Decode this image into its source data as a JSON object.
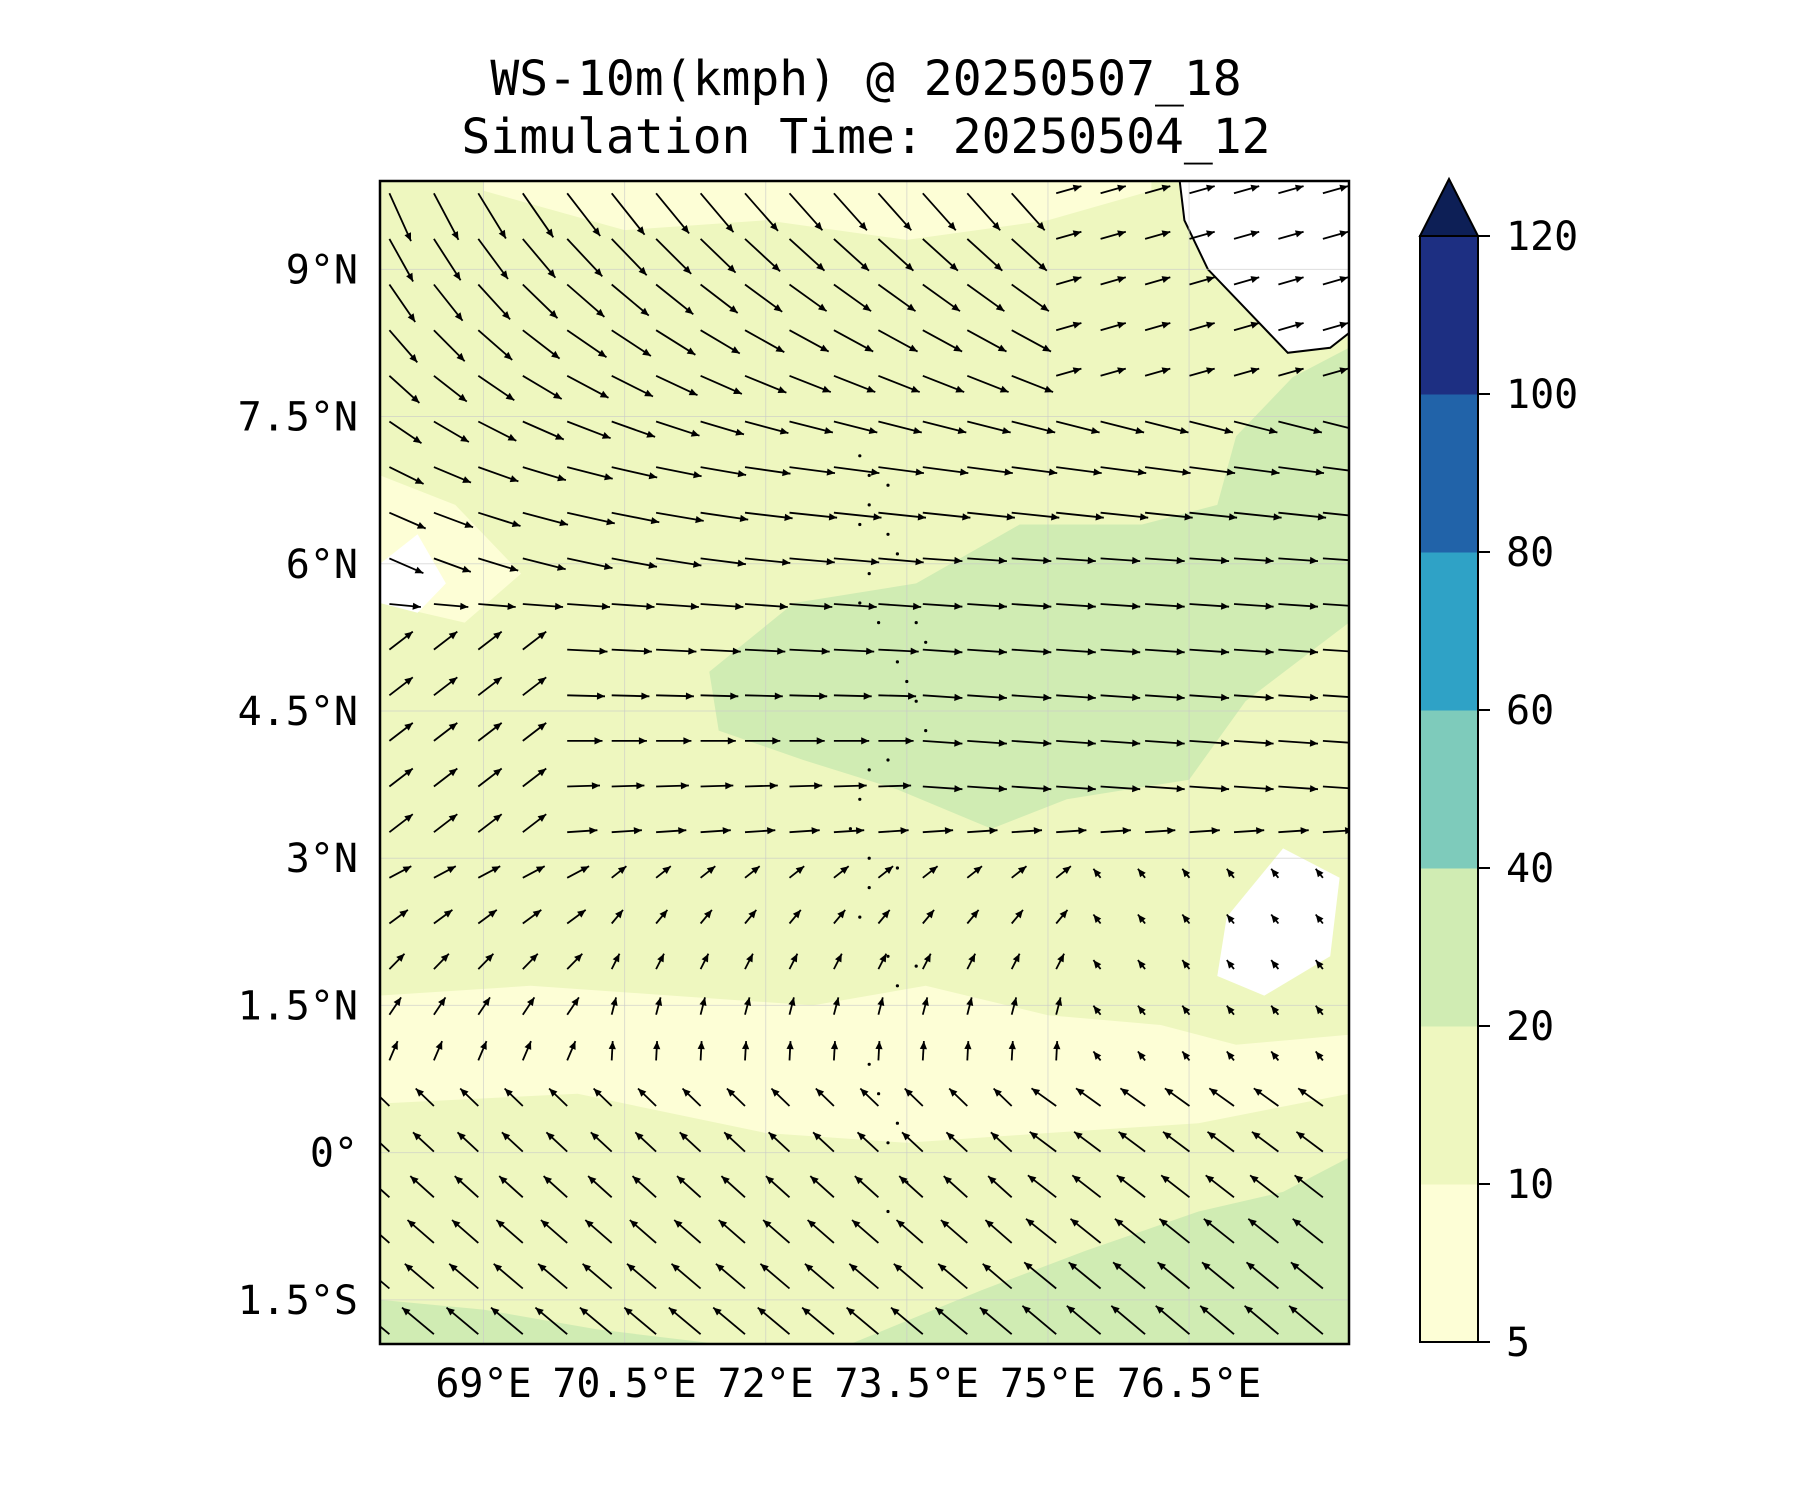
{
  "title": {
    "line1": "WS-10m(kmph) @ 20250507_18",
    "line2": "Simulation Time: 20250504_12"
  },
  "map": {
    "lon_range": [
      67.9,
      78.2
    ],
    "lat_range": [
      -1.95,
      9.9
    ],
    "lon_ticks": [
      {
        "value": 69.0,
        "label": "69°E"
      },
      {
        "value": 70.5,
        "label": "70.5°E"
      },
      {
        "value": 72.0,
        "label": "72°E"
      },
      {
        "value": 73.5,
        "label": "73.5°E"
      },
      {
        "value": 75.0,
        "label": "75°E"
      },
      {
        "value": 76.5,
        "label": "76.5°E"
      }
    ],
    "lat_ticks": [
      {
        "value": 9.0,
        "label": "9°N"
      },
      {
        "value": 7.5,
        "label": "7.5°N"
      },
      {
        "value": 6.0,
        "label": "6°N"
      },
      {
        "value": 4.5,
        "label": "4.5°N"
      },
      {
        "value": 3.0,
        "label": "3°N"
      },
      {
        "value": 1.5,
        "label": "1.5°N"
      },
      {
        "value": 0.0,
        "label": "0°"
      },
      {
        "value": -1.5,
        "label": "1.5°S"
      }
    ],
    "gridlines": true,
    "background_color": "#eef7bf",
    "regions": [
      {
        "level": "20-40",
        "color": "#d0ecb3",
        "shape": "central band 71.5–77°E, 3.5–6.3°N",
        "points": [
          [
            71.4,
            4.9
          ],
          [
            72.3,
            5.6
          ],
          [
            73.6,
            5.8
          ],
          [
            74.7,
            6.4
          ],
          [
            76.0,
            6.4
          ],
          [
            76.8,
            6.6
          ],
          [
            77.0,
            7.3
          ],
          [
            77.6,
            7.9
          ],
          [
            78.2,
            8.2
          ],
          [
            78.2,
            5.4
          ],
          [
            77.1,
            4.6
          ],
          [
            76.5,
            3.8
          ],
          [
            75.2,
            3.6
          ],
          [
            74.4,
            3.3
          ],
          [
            73.4,
            3.7
          ],
          [
            72.4,
            4.0
          ],
          [
            71.5,
            4.3
          ]
        ]
      },
      {
        "level": "20-40",
        "color": "#d0ecb3",
        "shape": "south-east corner",
        "points": [
          [
            72.9,
            -1.95
          ],
          [
            74.3,
            -1.4
          ],
          [
            75.4,
            -1.0
          ],
          [
            76.6,
            -0.6
          ],
          [
            77.5,
            -0.4
          ],
          [
            78.2,
            -0.05
          ],
          [
            78.2,
            -1.95
          ]
        ]
      },
      {
        "level": "20-40",
        "color": "#d0ecb3",
        "shape": "south-west corner strip",
        "points": [
          [
            67.9,
            -1.95
          ],
          [
            67.9,
            -1.5
          ],
          [
            69.0,
            -1.6
          ],
          [
            70.2,
            -1.8
          ],
          [
            71.5,
            -1.95
          ]
        ]
      },
      {
        "level": "5-10",
        "color": "#fdfed6",
        "shape": "calm band near equator",
        "points": [
          [
            67.9,
            1.6
          ],
          [
            69.5,
            1.7
          ],
          [
            71.0,
            1.6
          ],
          [
            72.5,
            1.5
          ],
          [
            73.7,
            1.7
          ],
          [
            75.0,
            1.4
          ],
          [
            76.2,
            1.3
          ],
          [
            77.0,
            1.1
          ],
          [
            78.2,
            1.2
          ],
          [
            78.2,
            0.6
          ],
          [
            76.6,
            0.3
          ],
          [
            75.0,
            0.2
          ],
          [
            73.5,
            0.1
          ],
          [
            72.0,
            0.2
          ],
          [
            70.0,
            0.6
          ],
          [
            67.9,
            0.5
          ]
        ]
      },
      {
        "level": "5-10",
        "color": "#fdfed6",
        "shape": "western patch",
        "points": [
          [
            67.9,
            6.9
          ],
          [
            68.7,
            6.6
          ],
          [
            69.4,
            5.9
          ],
          [
            68.8,
            5.4
          ],
          [
            67.9,
            5.6
          ]
        ]
      },
      {
        "level": "5-10",
        "color": "#fdfed6",
        "shape": "northern patches",
        "points": [
          [
            69.0,
            9.8
          ],
          [
            70.5,
            9.4
          ],
          [
            72.0,
            9.5
          ],
          [
            73.5,
            9.3
          ],
          [
            75.0,
            9.5
          ],
          [
            76.1,
            9.8
          ],
          [
            76.1,
            9.9
          ],
          [
            69.0,
            9.9
          ]
        ]
      },
      {
        "level": "<5",
        "color": "#ffffff",
        "shape": "calm patch east",
        "points": [
          [
            76.9,
            2.4
          ],
          [
            77.5,
            3.1
          ],
          [
            78.1,
            2.8
          ],
          [
            78.0,
            2.0
          ],
          [
            77.3,
            1.6
          ],
          [
            76.8,
            1.8
          ]
        ]
      },
      {
        "level": "<5",
        "color": "#ffffff",
        "shape": "calm patch west",
        "points": [
          [
            67.9,
            6.0
          ],
          [
            68.3,
            6.3
          ],
          [
            68.6,
            5.8
          ],
          [
            68.3,
            5.5
          ],
          [
            67.9,
            5.6
          ]
        ]
      }
    ],
    "land": {
      "name": "Sri Lanka coast",
      "color": "#ffffff",
      "stroke": "#000000",
      "coast_points": [
        [
          76.4,
          9.9
        ],
        [
          76.45,
          9.5
        ],
        [
          76.7,
          9.0
        ],
        [
          77.1,
          8.6
        ],
        [
          77.55,
          8.15
        ],
        [
          78.0,
          8.2
        ],
        [
          78.2,
          8.35
        ]
      ]
    },
    "islands": {
      "name": "Maldives atolls",
      "points": [
        [
          73.0,
          7.1
        ],
        [
          73.1,
          6.9
        ],
        [
          73.3,
          6.8
        ],
        [
          73.1,
          6.6
        ],
        [
          73.0,
          6.4
        ],
        [
          73.3,
          6.3
        ],
        [
          73.4,
          6.1
        ],
        [
          73.1,
          5.9
        ],
        [
          73.0,
          5.6
        ],
        [
          73.2,
          5.4
        ],
        [
          73.6,
          5.4
        ],
        [
          73.7,
          5.2
        ],
        [
          73.4,
          5.0
        ],
        [
          73.5,
          4.8
        ],
        [
          73.6,
          4.6
        ],
        [
          73.7,
          4.3
        ],
        [
          73.5,
          4.2
        ],
        [
          73.3,
          4.0
        ],
        [
          73.1,
          3.9
        ],
        [
          73.0,
          3.6
        ],
        [
          72.9,
          3.3
        ],
        [
          73.1,
          3.0
        ],
        [
          73.4,
          2.9
        ],
        [
          73.1,
          2.7
        ],
        [
          73.0,
          2.4
        ],
        [
          73.3,
          2.0
        ],
        [
          73.6,
          1.9
        ],
        [
          73.4,
          1.7
        ],
        [
          73.1,
          0.9
        ],
        [
          73.2,
          0.6
        ],
        [
          73.4,
          0.3
        ],
        [
          73.3,
          0.1
        ],
        [
          73.5,
          -0.3
        ],
        [
          73.3,
          -0.6
        ]
      ]
    },
    "wind": {
      "arrow_color": "#000000",
      "grid_lon_step": 0.75,
      "grid_lat_step": 0.75
    }
  },
  "colorbar": {
    "levels": [
      5,
      10,
      20,
      40,
      60,
      80,
      100,
      120
    ],
    "labels": [
      "5",
      "10",
      "20",
      "40",
      "60",
      "80",
      "100",
      "120"
    ],
    "colors": [
      "#fdfed6",
      "#eef7bf",
      "#d0ecb3",
      "#7ecbbb",
      "#2fa2c6",
      "#2163a9",
      "#1d2f82"
    ],
    "extend_color": "#0d1f56"
  }
}
